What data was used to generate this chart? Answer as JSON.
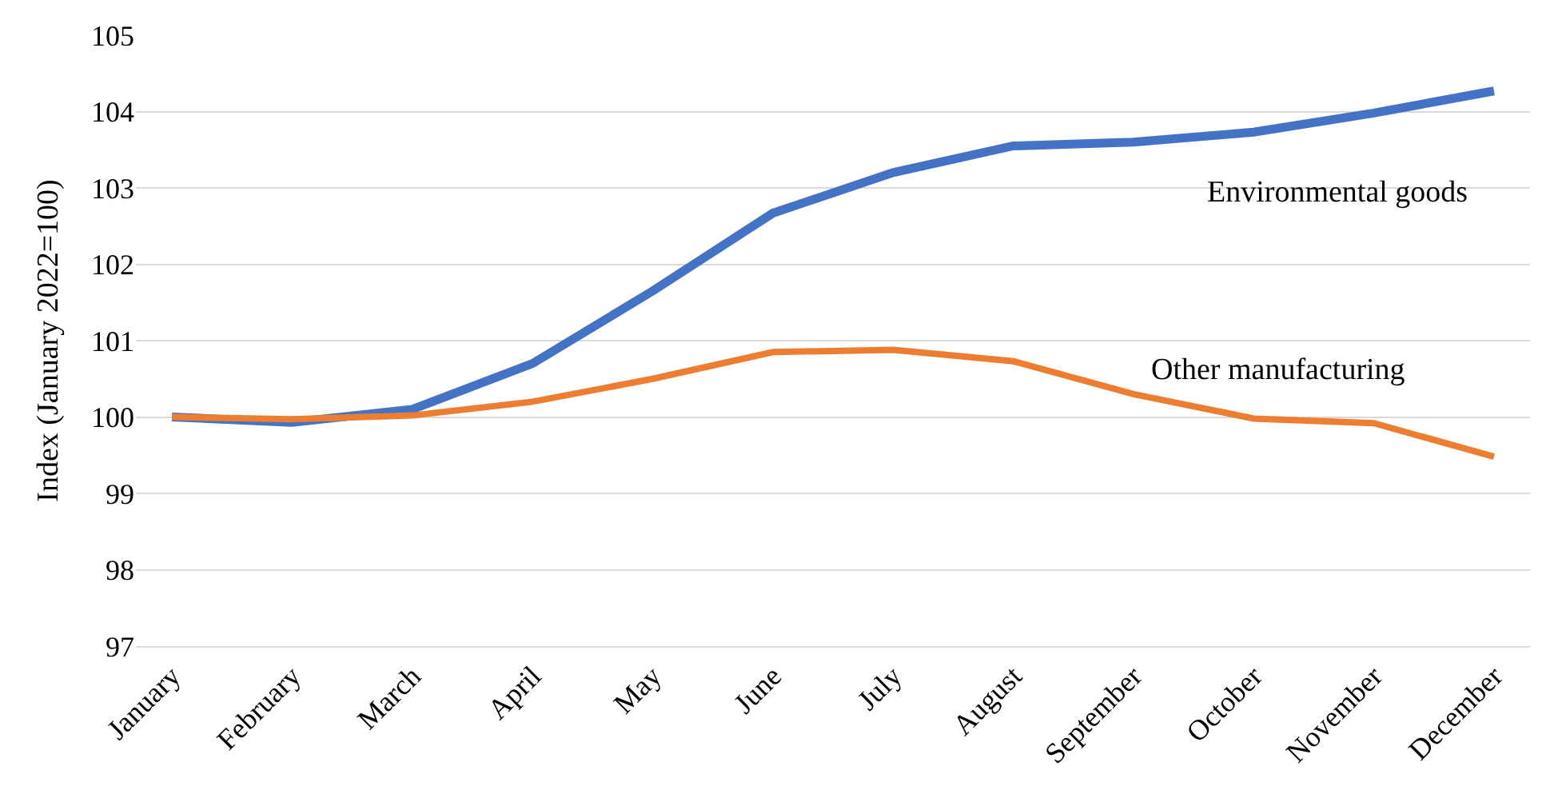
{
  "chart_data": {
    "type": "line",
    "ylabel": "Index (January 2022=100)",
    "categories": [
      "January",
      "February",
      "March",
      "April",
      "May",
      "June",
      "July",
      "August",
      "September",
      "October",
      "November",
      "December"
    ],
    "series": [
      {
        "name": "Environmental goods",
        "color": "#4472c4",
        "values": [
          100.0,
          99.93,
          100.1,
          100.7,
          101.65,
          102.67,
          103.2,
          103.55,
          103.6,
          103.73,
          103.98,
          104.27
        ]
      },
      {
        "name": "Other manufacturing",
        "color": "#ed7d31",
        "values": [
          100.0,
          99.97,
          100.02,
          100.2,
          100.5,
          100.85,
          100.88,
          100.73,
          100.3,
          99.98,
          99.92,
          99.48
        ]
      }
    ],
    "ylim": [
      97,
      105
    ],
    "yticks": [
      97,
      98,
      99,
      100,
      101,
      102,
      103,
      104,
      105
    ],
    "grid": "y",
    "legend": false,
    "marker": "none",
    "line_style": "solid"
  }
}
